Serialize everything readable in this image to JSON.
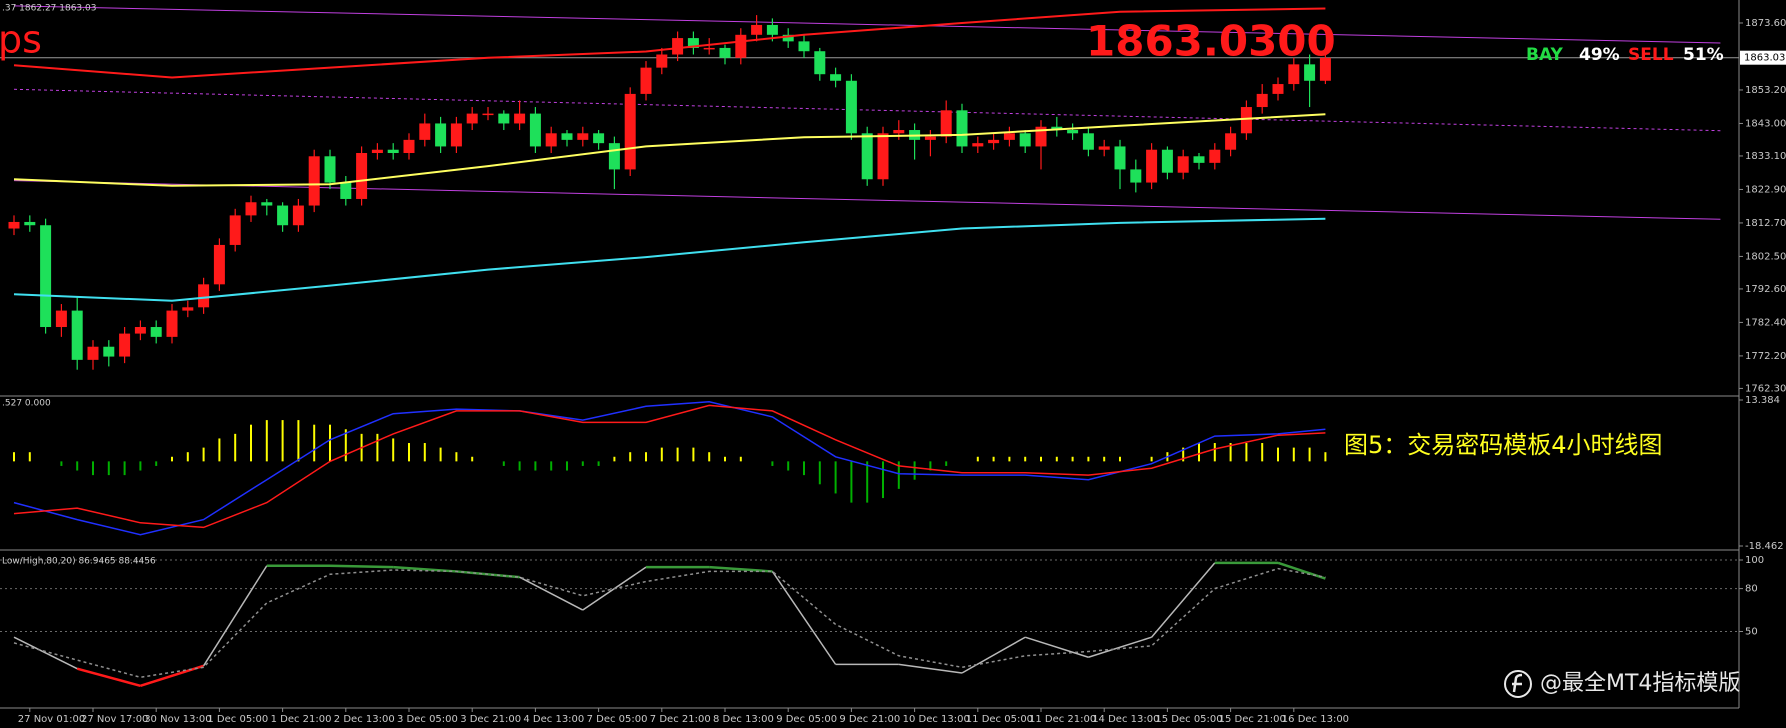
{
  "header": {
    "quote_fragment": ".37 1862.27 1863.03",
    "symbol_fragment": "ps",
    "price_display": "1863.0300",
    "buy_label": "BAY",
    "buy_pct": "49%",
    "sell_label": "SELL",
    "sell_pct": "51%",
    "caption": "图5：交易密码模板4小时线图",
    "watermark": "@最全MT4指标模版"
  },
  "chart_data": [
    {
      "type": "candlestick",
      "up_color": "#ff1a1a",
      "down_color": "#1ee05a",
      "ylim": [
        1760.6,
        1880.6
      ],
      "yticks": [
        {
          "value": 1873.6,
          "label": "1873.60"
        },
        {
          "value": 1853.2,
          "label": "1853.20"
        },
        {
          "value": 1843,
          "label": "1843.00"
        },
        {
          "value": 1833.1,
          "label": "1833.10"
        },
        {
          "value": 1822.9,
          "label": "1822.90"
        },
        {
          "value": 1812.7,
          "label": "1812.70"
        },
        {
          "value": 1802.5,
          "label": "1802.50"
        },
        {
          "value": 1792.6,
          "label": "1792.60"
        },
        {
          "value": 1782.4,
          "label": "1782.40"
        },
        {
          "value": 1772.2,
          "label": "1772.20"
        },
        {
          "value": 1762.3,
          "label": "1762.30"
        }
      ],
      "current_price": 1863.03,
      "categories": [
        null,
        "27 Nov 01:00",
        null,
        null,
        null,
        "27 Nov 17:00",
        null,
        null,
        null,
        "30 Nov 13:00",
        null,
        null,
        null,
        "1 Dec 05:00",
        null,
        null,
        null,
        "1 Dec 21:00",
        null,
        null,
        null,
        "2 Dec 13:00",
        null,
        null,
        null,
        "3 Dec 05:00",
        null,
        null,
        null,
        "3 Dec 21:00",
        null,
        null,
        null,
        "4 Dec 13:00",
        null,
        null,
        null,
        "7 Dec 05:00",
        null,
        null,
        null,
        "7 Dec 21:00",
        null,
        null,
        null,
        "8 Dec 13:00",
        null,
        null,
        null,
        "9 Dec 05:00",
        null,
        null,
        null,
        "9 Dec 21:00",
        null,
        null,
        null,
        "10 Dec 13:00",
        null,
        null,
        null,
        "11 Dec 05:00",
        null,
        null,
        null,
        "11 Dec 21:00",
        null,
        null,
        null,
        "14 Dec 13:00",
        null,
        null,
        null,
        "15 Dec 05:00",
        null,
        null,
        null,
        "15 Dec 21:00",
        null,
        null,
        null,
        "16 Dec 13:00",
        null,
        null
      ],
      "ohlc": [
        [
          1811,
          1815,
          1809,
          1813
        ],
        [
          1813,
          1815,
          1810,
          1812
        ],
        [
          1812,
          1814,
          1779,
          1781
        ],
        [
          1781,
          1788,
          1778,
          1786
        ],
        [
          1786,
          1790,
          1768,
          1771
        ],
        [
          1771,
          1777,
          1768,
          1775
        ],
        [
          1775,
          1777,
          1769,
          1772
        ],
        [
          1772,
          1781,
          1770,
          1779
        ],
        [
          1779,
          1783,
          1777,
          1781
        ],
        [
          1781,
          1783,
          1776,
          1778
        ],
        [
          1778,
          1788,
          1776,
          1786
        ],
        [
          1786,
          1789,
          1784,
          1787
        ],
        [
          1787,
          1796,
          1785,
          1794
        ],
        [
          1794,
          1808,
          1792,
          1806
        ],
        [
          1806,
          1817,
          1804,
          1815
        ],
        [
          1815,
          1821,
          1813,
          1819
        ],
        [
          1819,
          1820,
          1815,
          1818
        ],
        [
          1818,
          1819,
          1810,
          1812
        ],
        [
          1812,
          1820,
          1810,
          1818
        ],
        [
          1818,
          1835,
          1816,
          1833
        ],
        [
          1833,
          1835,
          1823,
          1825
        ],
        [
          1825,
          1827,
          1818,
          1820
        ],
        [
          1820,
          1836,
          1818,
          1834
        ],
        [
          1834,
          1837,
          1832,
          1835
        ],
        [
          1835,
          1837,
          1832,
          1834
        ],
        [
          1834,
          1840,
          1832,
          1838
        ],
        [
          1838,
          1846,
          1836,
          1843
        ],
        [
          1843,
          1845,
          1834,
          1836
        ],
        [
          1836,
          1845,
          1834,
          1843
        ],
        [
          1843,
          1848,
          1841,
          1846
        ],
        [
          1846,
          1848,
          1844,
          1846
        ],
        [
          1846,
          1847,
          1841,
          1843
        ],
        [
          1843,
          1850,
          1841,
          1846
        ],
        [
          1846,
          1848,
          1834,
          1836
        ],
        [
          1836,
          1842,
          1834,
          1840
        ],
        [
          1840,
          1841,
          1836,
          1838
        ],
        [
          1838,
          1842,
          1836,
          1840
        ],
        [
          1840,
          1841,
          1835,
          1837
        ],
        [
          1837,
          1839,
          1823,
          1829
        ],
        [
          1829,
          1854,
          1827,
          1852
        ],
        [
          1852,
          1862,
          1850,
          1860
        ],
        [
          1860,
          1866,
          1858,
          1864
        ],
        [
          1864,
          1871,
          1862,
          1869
        ],
        [
          1869,
          1871,
          1864,
          1866
        ],
        [
          1866,
          1869,
          1864,
          1866
        ],
        [
          1866,
          1867,
          1861,
          1863
        ],
        [
          1863,
          1872,
          1861,
          1870
        ],
        [
          1870,
          1876,
          1868,
          1873
        ],
        [
          1873,
          1875,
          1868,
          1870
        ],
        [
          1870,
          1872,
          1866,
          1868
        ],
        [
          1868,
          1870,
          1863,
          1865
        ],
        [
          1865,
          1866,
          1856,
          1858
        ],
        [
          1858,
          1860,
          1854,
          1856
        ],
        [
          1856,
          1858,
          1838,
          1840
        ],
        [
          1840,
          1842,
          1824,
          1826
        ],
        [
          1826,
          1842,
          1824,
          1840
        ],
        [
          1840,
          1844,
          1838,
          1841
        ],
        [
          1841,
          1843,
          1832,
          1838
        ],
        [
          1838,
          1841,
          1833,
          1839
        ],
        [
          1839,
          1850,
          1837,
          1847
        ],
        [
          1847,
          1849,
          1834,
          1836
        ],
        [
          1836,
          1839,
          1834,
          1837
        ],
        [
          1837,
          1840,
          1835,
          1838
        ],
        [
          1838,
          1842,
          1836,
          1840
        ],
        [
          1840,
          1841,
          1834,
          1836
        ],
        [
          1836,
          1844,
          1829,
          1842
        ],
        [
          1842,
          1845,
          1839,
          1841
        ],
        [
          1841,
          1843,
          1838,
          1840
        ],
        [
          1840,
          1842,
          1833,
          1835
        ],
        [
          1835,
          1838,
          1833,
          1836
        ],
        [
          1836,
          1838,
          1823,
          1829
        ],
        [
          1829,
          1832,
          1822,
          1825
        ],
        [
          1825,
          1837,
          1823,
          1835
        ],
        [
          1835,
          1836,
          1826,
          1828
        ],
        [
          1828,
          1835,
          1826,
          1833
        ],
        [
          1833,
          1834,
          1829,
          1831
        ],
        [
          1831,
          1837,
          1829,
          1835
        ],
        [
          1835,
          1842,
          1833,
          1840
        ],
        [
          1840,
          1850,
          1838,
          1848
        ],
        [
          1848,
          1855,
          1846,
          1852
        ],
        [
          1852,
          1857,
          1850,
          1855
        ],
        [
          1855,
          1863,
          1853,
          1861
        ],
        [
          1861,
          1864,
          1848,
          1856
        ],
        [
          1856,
          1866,
          1855,
          1863
        ]
      ],
      "series": [
        {
          "color": "#c040e0",
          "width": 1,
          "x": [
            0,
            108
          ],
          "values": [
            1878.8,
            1867.5
          ]
        },
        {
          "color": "#c040e0",
          "width": 1,
          "x": [
            0,
            108
          ],
          "values": [
            1825.6,
            1813.8
          ]
        },
        {
          "color": "#c040e0",
          "width": 1,
          "dash": true,
          "x": [
            0,
            108
          ],
          "values": [
            1853.4,
            1840.8
          ]
        },
        {
          "color": "#ff1a1a",
          "width": 2,
          "x": [
            0,
            10,
            20,
            30,
            40,
            50,
            60,
            70,
            83
          ],
          "values": [
            1860.7,
            1857,
            1860,
            1863,
            1864.9,
            1870,
            1873.6,
            1877,
            1878
          ]
        },
        {
          "color": "#ffff60",
          "width": 2,
          "x": [
            0,
            10,
            20,
            30,
            40,
            50,
            60,
            70,
            83
          ],
          "values": [
            1826,
            1824,
            1824.5,
            1830,
            1836,
            1838.8,
            1839.5,
            1842.3,
            1845.8
          ]
        },
        {
          "color": "#40e0f0",
          "width": 2,
          "x": [
            0,
            10,
            20,
            30,
            40,
            50,
            60,
            70,
            83
          ],
          "values": [
            1791,
            1789,
            1793.6,
            1798.5,
            1802.3,
            1806.8,
            1811,
            1812.7,
            1814
          ]
        }
      ]
    },
    {
      "type": "macd",
      "header": ".527 0.000",
      "ylim": [
        -18.462,
        13.384
      ],
      "yticks": [
        13.384,
        -18.462
      ],
      "positive_color": "#ffff00",
      "negative_color": "#00b000",
      "histogram": [
        2,
        2,
        0,
        -1,
        -2,
        -3,
        -3,
        -3,
        -2,
        -1,
        1,
        2,
        3,
        5,
        6,
        8,
        9,
        9,
        9,
        8,
        8,
        7,
        6,
        6,
        5,
        4,
        4,
        3,
        2,
        1,
        0,
        -1,
        -2,
        -2,
        -2,
        -2,
        -1,
        -1,
        1,
        2,
        2,
        3,
        3,
        3,
        2,
        1,
        1,
        0,
        -1,
        -2,
        -3,
        -5,
        -7,
        -9,
        -9,
        -8,
        -6,
        -4,
        -2,
        -1,
        0,
        1,
        1,
        1,
        1,
        1,
        1,
        1,
        1,
        1,
        1,
        0,
        1,
        2,
        3,
        4,
        4,
        4,
        4,
        4,
        3,
        3,
        3,
        2
      ],
      "series": [
        {
          "color": "#2030ff",
          "x": [
            0,
            4,
            8,
            12,
            16,
            20,
            24,
            28,
            32,
            36,
            40,
            44,
            48,
            52,
            56,
            60,
            64,
            68,
            72,
            76,
            80,
            83
          ],
          "values": [
            -9,
            -12.7,
            -16,
            -12.7,
            -4,
            4.7,
            10.4,
            11.4,
            11,
            9,
            12,
            13,
            9.7,
            1,
            -2.7,
            -3,
            -3,
            -4,
            -0.5,
            5.5,
            6,
            7
          ]
        },
        {
          "color": "#ff1a1a",
          "x": [
            0,
            4,
            8,
            12,
            16,
            20,
            24,
            28,
            32,
            36,
            40,
            44,
            48,
            52,
            56,
            60,
            64,
            68,
            72,
            76,
            80,
            83
          ],
          "values": [
            -11.4,
            -10.2,
            -13.4,
            -14.4,
            -9,
            0,
            6,
            11,
            11,
            8.5,
            8.5,
            12.2,
            11,
            4.7,
            -1,
            -2.5,
            -2.5,
            -3,
            -1.5,
            2.7,
            5.7,
            6.2
          ]
        }
      ]
    },
    {
      "type": "stochastic",
      "header": "Low/High,80,20) 86.9465 88.4456",
      "ylim": [
        0,
        100
      ],
      "yticks": [
        100,
        80,
        50
      ],
      "grid": true,
      "zones": [
        {
          "above": 80,
          "color": "#3a9a3a"
        },
        {
          "below": 20,
          "color": "#ff1a1a"
        }
      ],
      "series": [
        {
          "color": "#b8b8b8",
          "x": [
            0,
            4,
            8,
            12,
            16,
            20,
            24,
            28,
            32,
            36,
            40,
            44,
            48,
            52,
            56,
            60,
            64,
            68,
            72,
            76,
            80,
            83
          ],
          "values": [
            46,
            24,
            12,
            26,
            96,
            96,
            95,
            92,
            88,
            65,
            95,
            95,
            92,
            27,
            27,
            21,
            46,
            32,
            46,
            98,
            98,
            87
          ]
        },
        {
          "color": "#909090",
          "dash": true,
          "x": [
            0,
            4,
            8,
            12,
            16,
            20,
            24,
            28,
            32,
            36,
            40,
            44,
            48,
            52,
            56,
            60,
            64,
            68,
            72,
            76,
            80,
            83
          ],
          "values": [
            42,
            30,
            18,
            25,
            70,
            90,
            93,
            92,
            88,
            75,
            85,
            92,
            92,
            55,
            33,
            25,
            33,
            36,
            40,
            80,
            94,
            88
          ]
        }
      ]
    }
  ]
}
